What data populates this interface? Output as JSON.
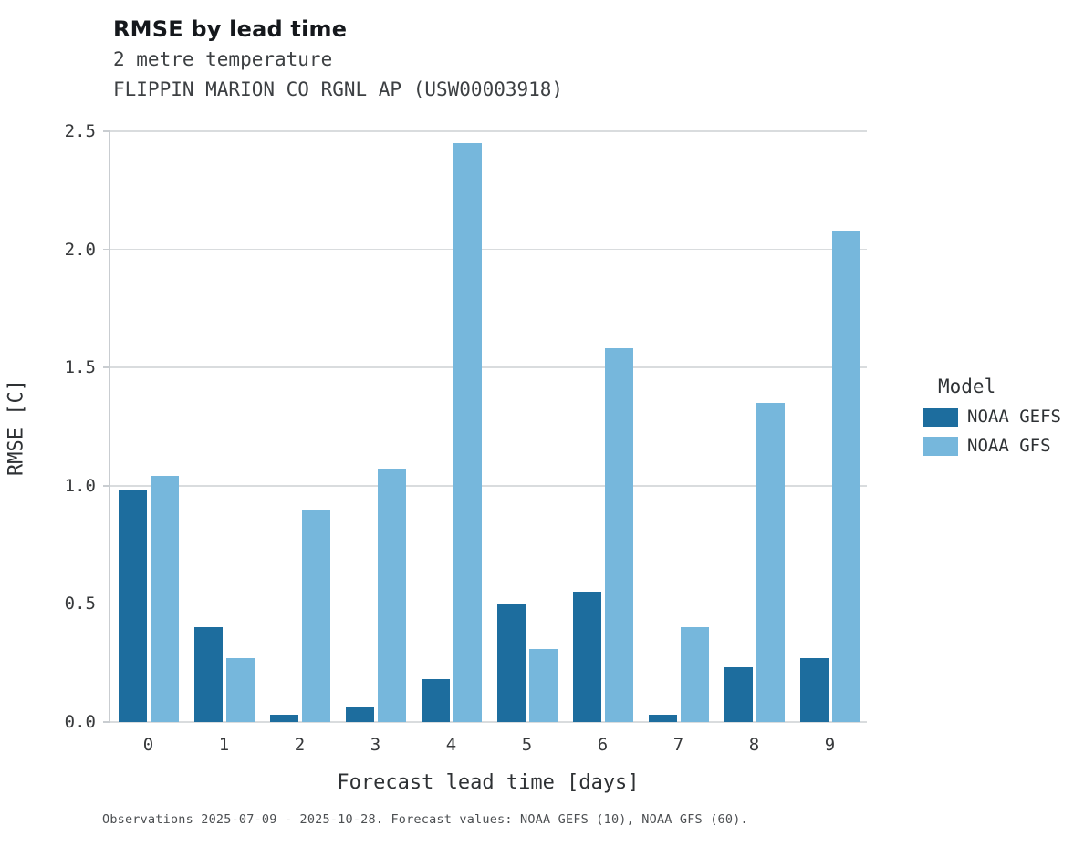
{
  "header": {
    "title": "RMSE by lead time",
    "subtitle_line1": "2 metre temperature",
    "subtitle_line2": "FLIPPIN MARION CO RGNL AP (USW00003918)"
  },
  "legend": {
    "title": "Model",
    "entries": [
      {
        "label": "NOAA GEFS",
        "color": "#1d6d9e"
      },
      {
        "label": "NOAA GFS",
        "color": "#76b7dc"
      }
    ]
  },
  "footer": {
    "note": "Observations 2025-07-09 - 2025-10-28. Forecast values: NOAA GEFS (10), NOAA GFS (60)."
  },
  "chart_data": {
    "type": "bar",
    "title": "RMSE by lead time",
    "subtitle": "2 metre temperature — FLIPPIN MARION CO RGNL AP (USW00003918)",
    "xlabel": "Forecast lead time [days]",
    "ylabel": "RMSE [C]",
    "categories": [
      "0",
      "1",
      "2",
      "3",
      "4",
      "5",
      "6",
      "7",
      "8",
      "9"
    ],
    "series": [
      {
        "name": "NOAA GEFS",
        "color": "#1d6d9e",
        "values": [
          0.98,
          0.4,
          0.03,
          0.06,
          0.18,
          0.5,
          0.55,
          0.03,
          0.23,
          0.27
        ]
      },
      {
        "name": "NOAA GFS",
        "color": "#76b7dc",
        "values": [
          1.04,
          0.27,
          0.9,
          1.07,
          2.45,
          0.31,
          1.58,
          0.4,
          1.35,
          2.08
        ]
      }
    ],
    "ylim": [
      0,
      2.5
    ],
    "yticks": [
      0.0,
      0.5,
      1.0,
      1.5,
      2.0,
      2.5
    ],
    "grid": true,
    "legend_position": "right"
  }
}
